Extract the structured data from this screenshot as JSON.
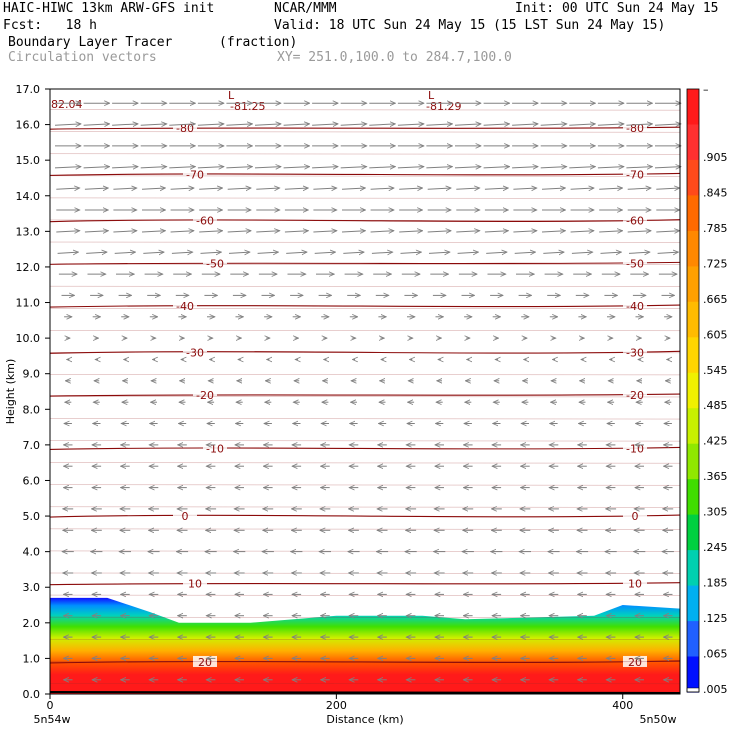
{
  "header": {
    "model": "HAIC-HIWC 13km ARW-GFS init",
    "center": "NCAR/MMM",
    "init": "Init: 00 UTC Sun 24 May 15",
    "fcst": "Fcst:   18 h",
    "valid": "Valid: 18 UTC Sun 24 May 15 (15 LST Sun 24 May 15)",
    "field": "Boundary Layer Tracer",
    "field_units": "(fraction)",
    "overlay": "Circulation vectors",
    "xy": "XY= 251.0,100.0 to 284.7,100.0"
  },
  "chart_data": {
    "type": "heatmap",
    "title": "Boundary Layer Tracer (fraction)",
    "xlabel": "Distance (km)",
    "ylabel": "Height (km)",
    "xlim": [
      0,
      440
    ],
    "ylim": [
      0,
      17
    ],
    "x_ticks": [
      "0",
      "200",
      "400"
    ],
    "x_end_labels": [
      "5n54w",
      "5n50w"
    ],
    "y_ticks": [
      "0.0",
      "1.0",
      "2.0",
      "3.0",
      "4.0",
      "5.0",
      "6.0",
      "7.0",
      "8.0",
      "9.0",
      "10.0",
      "11.0",
      "12.0",
      "13.0",
      "14.0",
      "15.0",
      "16.0",
      "17.0"
    ],
    "colorbar": {
      "labels": [
        "–",
        ".905",
        ".845",
        ".785",
        ".725",
        ".665",
        ".605",
        ".545",
        ".485",
        ".425",
        ".365",
        ".305",
        ".245",
        ".185",
        ".125",
        ".065",
        ".005"
      ],
      "colors": [
        "#ff1a1a",
        "#ff3030",
        "#ff4a1a",
        "#ff6a00",
        "#ff8800",
        "#ffa000",
        "#ffbb00",
        "#ffd500",
        "#f0f000",
        "#c8f000",
        "#90e800",
        "#40dd00",
        "#00d040",
        "#00d0b0",
        "#00b0f0",
        "#2060ff",
        "#0010ff"
      ]
    },
    "tracer_top_km": [
      [
        0,
        2.7
      ],
      [
        40,
        2.7
      ],
      [
        70,
        2.3
      ],
      [
        90,
        2.0
      ],
      [
        140,
        2.0
      ],
      [
        200,
        2.2
      ],
      [
        260,
        2.2
      ],
      [
        290,
        2.1
      ],
      [
        380,
        2.2
      ],
      [
        400,
        2.5
      ],
      [
        440,
        2.4
      ]
    ],
    "temperature_contours": [
      {
        "label": "-80",
        "height_km": 15.9
      },
      {
        "label": "-70",
        "height_km": 14.6
      },
      {
        "label": "-60",
        "height_km": 13.3
      },
      {
        "label": "-50",
        "height_km": 12.1
      },
      {
        "label": "-40",
        "height_km": 10.9
      },
      {
        "label": "-30",
        "height_km": 9.6
      },
      {
        "label": "-20",
        "height_km": 8.4
      },
      {
        "label": "-10",
        "height_km": 6.9
      },
      {
        "label": "0",
        "height_km": 5.0
      },
      {
        "label": "10",
        "height_km": 3.1
      },
      {
        "label": "20",
        "height_km": 0.9
      }
    ],
    "annotations": [
      "L",
      "-81.25",
      "L",
      "-81.29",
      "82.04"
    ],
    "wind_rows": [
      {
        "height_km": 16.6,
        "u": 1.0,
        "w": 0.0
      },
      {
        "height_km": 16.0,
        "u": 1.0,
        "w": 0.05
      },
      {
        "height_km": 15.4,
        "u": 1.0,
        "w": 0.0
      },
      {
        "height_km": 14.8,
        "u": 1.0,
        "w": 0.05
      },
      {
        "height_km": 14.2,
        "u": 0.9,
        "w": 0.05
      },
      {
        "height_km": 13.6,
        "u": 0.9,
        "w": 0.0
      },
      {
        "height_km": 13.0,
        "u": 0.9,
        "w": 0.05
      },
      {
        "height_km": 12.4,
        "u": 0.8,
        "w": 0.05
      },
      {
        "height_km": 11.8,
        "u": 0.7,
        "w": 0.0
      },
      {
        "height_km": 11.2,
        "u": 0.5,
        "w": 0.0
      },
      {
        "height_km": 10.6,
        "u": 0.3,
        "w": 0.0
      },
      {
        "height_km": 10.0,
        "u": 0.15,
        "w": 0.0
      },
      {
        "height_km": 9.4,
        "u": -0.1,
        "w": 0.0
      },
      {
        "height_km": 8.8,
        "u": -0.2,
        "w": 0.0
      },
      {
        "height_km": 8.2,
        "u": -0.25,
        "w": 0.0
      },
      {
        "height_km": 7.6,
        "u": -0.3,
        "w": 0.0
      },
      {
        "height_km": 7.0,
        "u": -0.35,
        "w": 0.0
      },
      {
        "height_km": 6.4,
        "u": -0.35,
        "w": 0.0
      },
      {
        "height_km": 5.8,
        "u": -0.35,
        "w": 0.0
      },
      {
        "height_km": 5.2,
        "u": -0.4,
        "w": 0.0
      },
      {
        "height_km": 4.6,
        "u": -0.4,
        "w": 0.0
      },
      {
        "height_km": 4.0,
        "u": -0.45,
        "w": 0.0
      },
      {
        "height_km": 3.4,
        "u": -0.4,
        "w": 0.0
      },
      {
        "height_km": 2.8,
        "u": -0.35,
        "w": 0.0
      },
      {
        "height_km": 2.2,
        "u": -0.35,
        "w": 0.0
      },
      {
        "height_km": 1.6,
        "u": -0.35,
        "w": 0.0
      },
      {
        "height_km": 1.0,
        "u": -0.35,
        "w": 0.0
      },
      {
        "height_km": 0.4,
        "u": -0.35,
        "w": 0.0
      }
    ]
  }
}
